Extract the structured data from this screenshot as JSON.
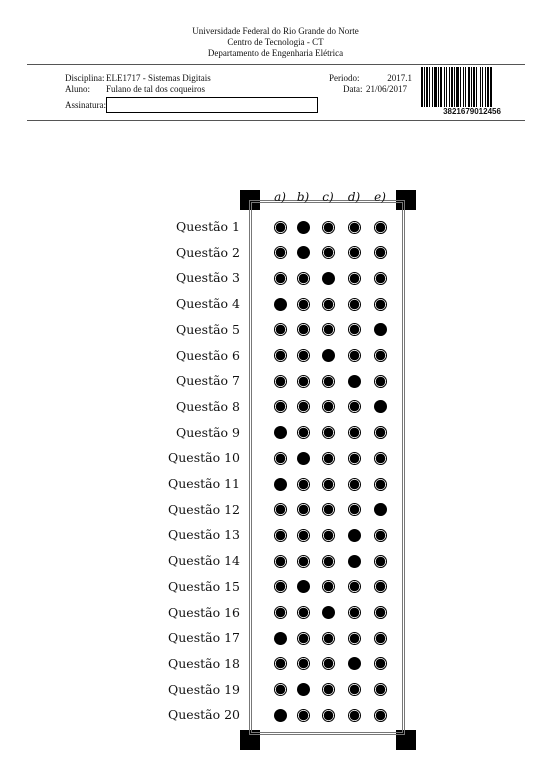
{
  "header": {
    "university": "Universidade Federal do Rio Grande do Norte",
    "center": "Centro de Tecnologia - CT",
    "department": "Departamento de Engenharia Elétrica"
  },
  "form": {
    "discipline_label": "Disciplina:",
    "discipline_value": "ELE1717 - Sistemas Digitais",
    "student_label": "Aluno:",
    "student_value": "Fulano de tal dos coqueiros",
    "signature_label": "Assinatura:",
    "period_label": "Periodo:",
    "period_value": "2017.1",
    "date_label": "Data:",
    "date_value": "21/06/2017"
  },
  "barcode": {
    "number": "3821679012456"
  },
  "options": [
    "a)",
    "b)",
    "c)",
    "d)",
    "e)"
  ],
  "questions": [
    {
      "label": "Questão 1",
      "marked": 1
    },
    {
      "label": "Questão 2",
      "marked": 1
    },
    {
      "label": "Questão 3",
      "marked": 2
    },
    {
      "label": "Questão 4",
      "marked": 0
    },
    {
      "label": "Questão 5",
      "marked": 4
    },
    {
      "label": "Questão 6",
      "marked": 2
    },
    {
      "label": "Questão 7",
      "marked": 3
    },
    {
      "label": "Questão 8",
      "marked": 4
    },
    {
      "label": "Questão 9",
      "marked": 0
    },
    {
      "label": "Questão 10",
      "marked": 1
    },
    {
      "label": "Questão 11",
      "marked": 0
    },
    {
      "label": "Questão 12",
      "marked": 4
    },
    {
      "label": "Questão 13",
      "marked": 3
    },
    {
      "label": "Questão 14",
      "marked": 3
    },
    {
      "label": "Questão 15",
      "marked": 1
    },
    {
      "label": "Questão 16",
      "marked": 2
    },
    {
      "label": "Questão 17",
      "marked": 0
    },
    {
      "label": "Questão 18",
      "marked": 3
    },
    {
      "label": "Questão 19",
      "marked": 1
    },
    {
      "label": "Questão 20",
      "marked": 0
    }
  ]
}
